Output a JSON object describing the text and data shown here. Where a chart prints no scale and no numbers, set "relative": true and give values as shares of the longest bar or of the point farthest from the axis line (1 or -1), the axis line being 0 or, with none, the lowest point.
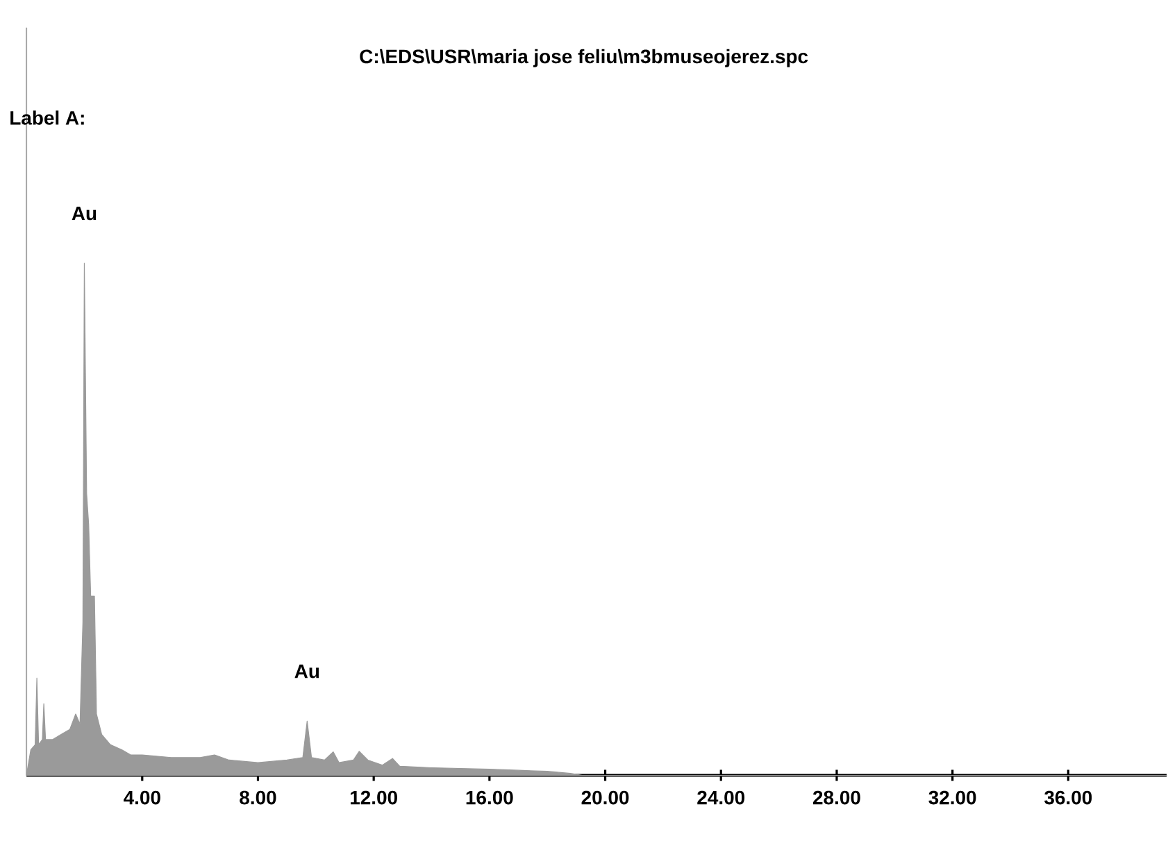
{
  "chart_data": {
    "type": "area",
    "title": "C:\\EDS\\USR\\maria jose feliu\\m3bmuseojerez.spc",
    "annotations": [
      "Label A:",
      {
        "text": "Au",
        "x": 2.0,
        "y": 1.0
      },
      {
        "text": "Au",
        "x": 9.7,
        "y": 0.106
      }
    ],
    "relative": true,
    "tick_labels": "x",
    "xlim": [
      0,
      39.4
    ],
    "xticks": [
      {
        "value": 4,
        "label": "4.00"
      },
      {
        "value": 8,
        "label": "8.00"
      },
      {
        "value": 12,
        "label": "12.00"
      },
      {
        "value": 16,
        "label": "16.00"
      },
      {
        "value": 20,
        "label": "20.00"
      },
      {
        "value": 24,
        "label": "24.00"
      },
      {
        "value": 28,
        "label": "28.00"
      },
      {
        "value": 32,
        "label": "32.00"
      },
      {
        "value": 36,
        "label": "36.00"
      }
    ],
    "x": [
      0.0,
      0.15,
      0.3,
      0.36,
      0.42,
      0.55,
      0.6,
      0.66,
      0.9,
      1.2,
      1.5,
      1.7,
      1.85,
      1.95,
      2.0,
      2.08,
      2.15,
      2.22,
      2.35,
      2.42,
      2.6,
      2.9,
      3.3,
      3.6,
      4.0,
      5.0,
      6.0,
      6.5,
      7.0,
      8.0,
      9.0,
      9.55,
      9.7,
      9.85,
      10.3,
      10.6,
      10.8,
      11.3,
      11.5,
      11.8,
      12.3,
      12.65,
      12.9,
      14.0,
      16.0,
      17.0,
      18.0,
      18.8,
      19.2,
      39.4
    ],
    "values": [
      0,
      0.05,
      0.06,
      0.19,
      0.06,
      0.07,
      0.14,
      0.07,
      0.07,
      0.08,
      0.09,
      0.12,
      0.1,
      0.3,
      1.0,
      0.55,
      0.49,
      0.35,
      0.35,
      0.12,
      0.08,
      0.06,
      0.05,
      0.04,
      0.04,
      0.035,
      0.035,
      0.04,
      0.03,
      0.025,
      0.03,
      0.035,
      0.106,
      0.035,
      0.03,
      0.046,
      0.025,
      0.03,
      0.047,
      0.03,
      0.02,
      0.033,
      0.018,
      0.015,
      0.012,
      0.01,
      0.008,
      0.004,
      0,
      0
    ],
    "color": "#9a9a9a"
  }
}
